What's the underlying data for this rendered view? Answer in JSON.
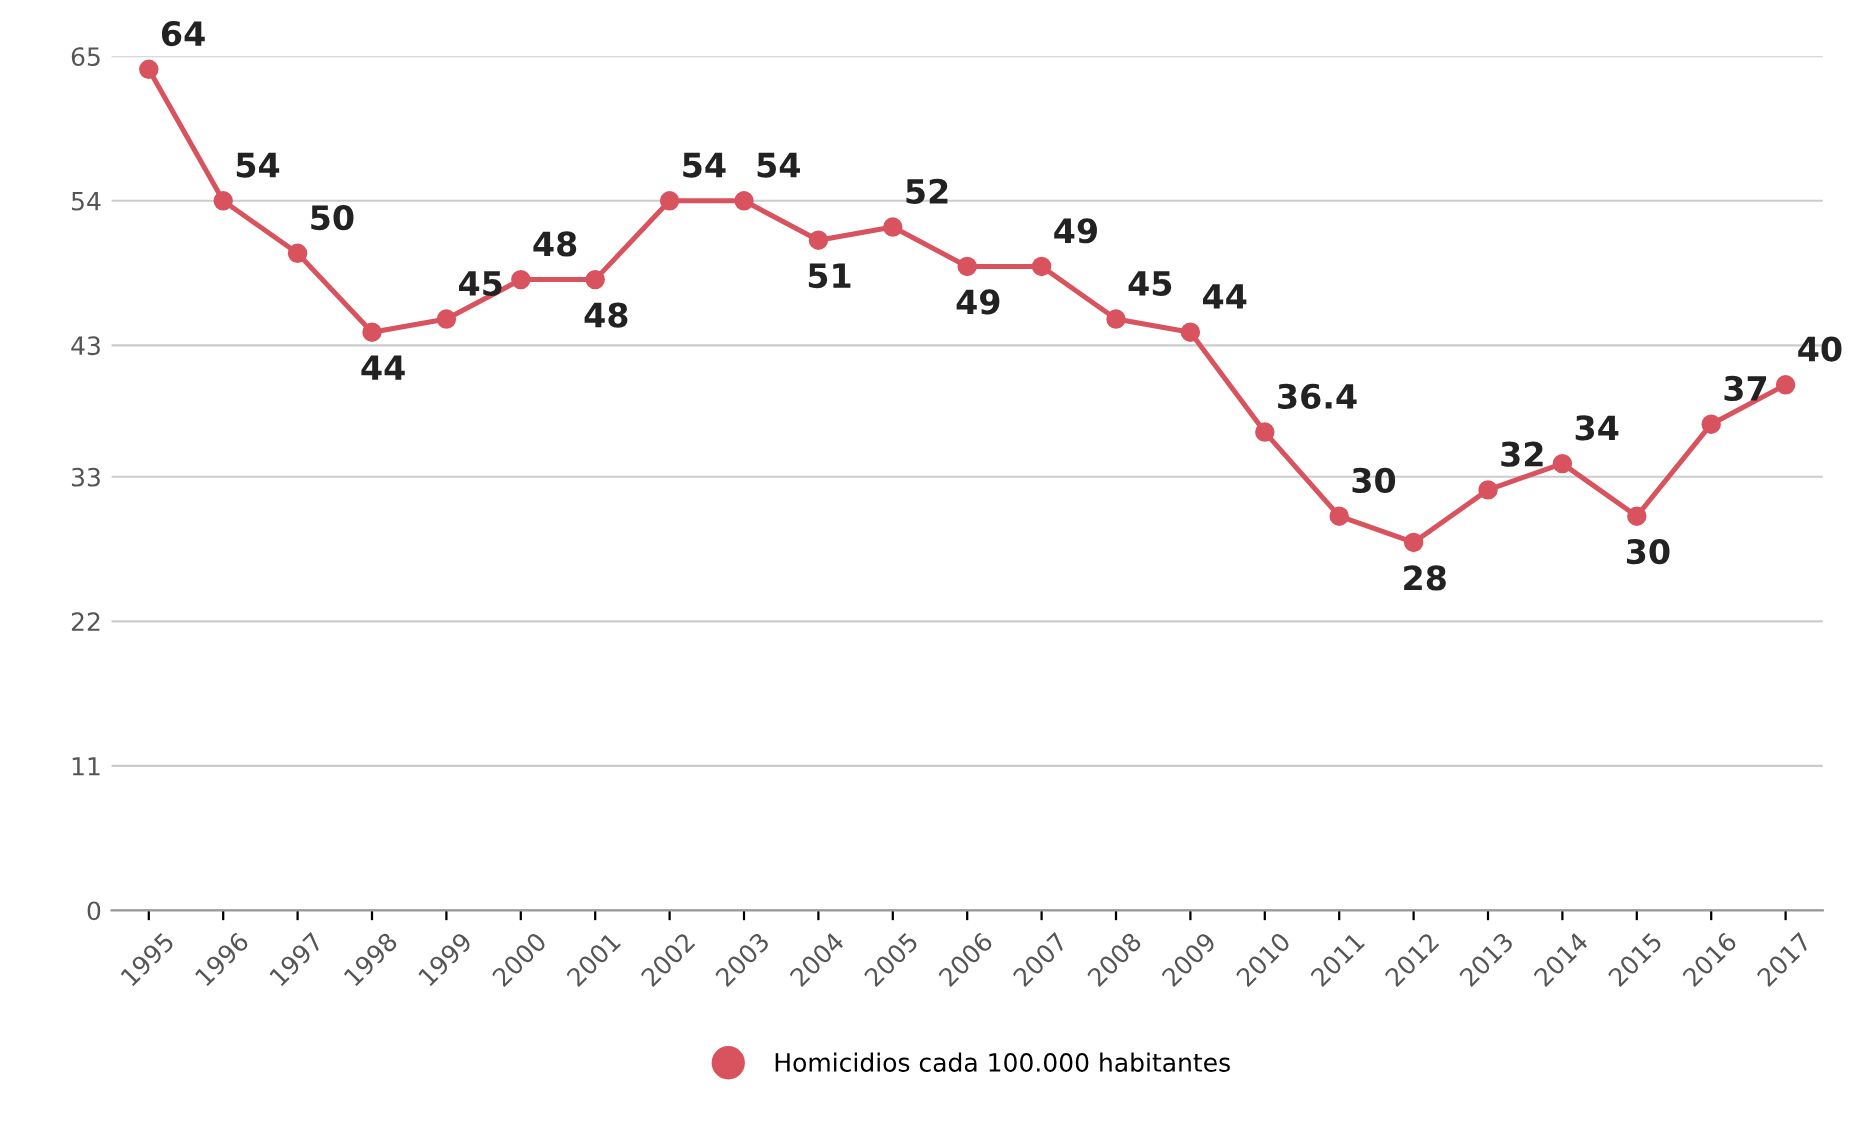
{
  "chart_data": {
    "type": "line",
    "categories": [
      "1995",
      "1996",
      "1997",
      "1998",
      "1999",
      "2000",
      "2001",
      "2002",
      "2003",
      "2004",
      "2005",
      "2006",
      "2007",
      "2008",
      "2009",
      "2010",
      "2011",
      "2012",
      "2013",
      "2014",
      "2015",
      "2016",
      "2017"
    ],
    "series": [
      {
        "name": "Homicidios cada 100.000 habitantes",
        "color": "#d9535f",
        "values": [
          64,
          54,
          50,
          44,
          45,
          48,
          48,
          54,
          54,
          51,
          52,
          49,
          49,
          45,
          44,
          36.4,
          30,
          28,
          32,
          34,
          30,
          37,
          40
        ]
      }
    ],
    "ylim": [
      0,
      65
    ],
    "yticks": [
      0,
      11,
      22,
      33,
      43,
      54,
      65
    ],
    "grid": "y",
    "legend": "bottom",
    "marker": "circle",
    "line_style": "solid",
    "data_labels": true
  }
}
